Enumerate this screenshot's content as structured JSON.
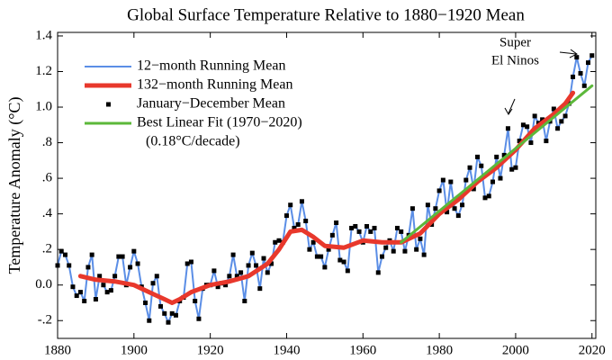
{
  "chart_data": {
    "type": "line",
    "title": "Global Surface Temperature Relative to 1880−1920 Mean",
    "ylabel": "Temperature Anomaly (°C)",
    "xlim": [
      1880,
      2021
    ],
    "ylim": [
      -0.3,
      1.42
    ],
    "xticks": [
      1880,
      1900,
      1920,
      1940,
      1960,
      1980,
      2000,
      2020
    ],
    "yticks": [
      {
        "value": -0.2,
        "label": "-.2"
      },
      {
        "value": 0,
        "label": "0.0"
      },
      {
        "value": 0.2,
        "label": ".2"
      },
      {
        "value": 0.4,
        "label": ".4"
      },
      {
        "value": 0.6,
        "label": ".6"
      },
      {
        "value": 0.8,
        "label": ".8"
      },
      {
        "value": 1.0,
        "label": "1.0"
      },
      1.2,
      1.4
    ],
    "legend": "upper left",
    "annotations": [
      "(0.18°C/decade)",
      "Super",
      "El Ninos"
    ],
    "x": [
      1880,
      1881,
      1882,
      1883,
      1884,
      1885,
      1886,
      1887,
      1888,
      1889,
      1890,
      1891,
      1892,
      1893,
      1894,
      1895,
      1896,
      1897,
      1898,
      1899,
      1900,
      1901,
      1902,
      1903,
      1904,
      1905,
      1906,
      1907,
      1908,
      1909,
      1910,
      1911,
      1912,
      1913,
      1914,
      1915,
      1916,
      1917,
      1918,
      1919,
      1920,
      1921,
      1922,
      1923,
      1924,
      1925,
      1926,
      1927,
      1928,
      1929,
      1930,
      1931,
      1932,
      1933,
      1934,
      1935,
      1936,
      1937,
      1938,
      1939,
      1940,
      1941,
      1942,
      1943,
      1944,
      1945,
      1946,
      1947,
      1948,
      1949,
      1950,
      1951,
      1952,
      1953,
      1954,
      1955,
      1956,
      1957,
      1958,
      1959,
      1960,
      1961,
      1962,
      1963,
      1964,
      1965,
      1966,
      1967,
      1968,
      1969,
      1970,
      1971,
      1972,
      1973,
      1974,
      1975,
      1976,
      1977,
      1978,
      1979,
      1980,
      1981,
      1982,
      1983,
      1984,
      1985,
      1986,
      1987,
      1988,
      1989,
      1990,
      1991,
      1992,
      1993,
      1994,
      1995,
      1996,
      1997,
      1998,
      1999,
      2000,
      2001,
      2002,
      2003,
      2004,
      2005,
      2006,
      2007,
      2008,
      2009,
      2010,
      2011,
      2012,
      2013,
      2014,
      2015,
      2016,
      2017,
      2018,
      2019,
      2020
    ],
    "series": [
      {
        "name": "12−month Running Mean",
        "color": "#5b8ee6",
        "style": "line",
        "width": 2,
        "values": [
          0.11,
          0.19,
          0.17,
          0.11,
          -0.01,
          -0.06,
          -0.04,
          -0.09,
          0.1,
          0.17,
          -0.08,
          0.05,
          0.0,
          -0.04,
          -0.03,
          0.05,
          0.16,
          0.16,
          0.0,
          0.1,
          0.19,
          0.12,
          -0.01,
          -0.1,
          -0.2,
          0.01,
          0.05,
          -0.12,
          -0.16,
          -0.21,
          -0.16,
          -0.17,
          -0.09,
          -0.07,
          0.12,
          0.13,
          -0.09,
          -0.19,
          -0.02,
          0.0,
          0.0,
          0.08,
          -0.01,
          0.01,
          0.0,
          0.05,
          0.17,
          0.05,
          0.07,
          -0.09,
          0.11,
          0.18,
          0.11,
          -0.02,
          0.15,
          0.07,
          0.12,
          0.24,
          0.25,
          0.24,
          0.39,
          0.45,
          0.32,
          0.34,
          0.47,
          0.36,
          0.2,
          0.24,
          0.16,
          0.16,
          0.1,
          0.2,
          0.28,
          0.35,
          0.14,
          0.13,
          0.08,
          0.32,
          0.33,
          0.3,
          0.24,
          0.33,
          0.3,
          0.32,
          0.07,
          0.16,
          0.21,
          0.25,
          0.19,
          0.32,
          0.3,
          0.19,
          0.28,
          0.43,
          0.2,
          0.26,
          0.17,
          0.45,
          0.34,
          0.43,
          0.53,
          0.59,
          0.41,
          0.58,
          0.43,
          0.39,
          0.45,
          0.59,
          0.66,
          0.54,
          0.72,
          0.67,
          0.49,
          0.5,
          0.58,
          0.72,
          0.6,
          0.73,
          0.88,
          0.65,
          0.66,
          0.81,
          0.9,
          0.89,
          0.8,
          0.95,
          0.91,
          0.93,
          0.81,
          0.92,
          0.99,
          0.88,
          0.92,
          0.95,
          1.02,
          1.17,
          1.28,
          1.19,
          1.12,
          1.25,
          1.29
        ]
      },
      {
        "name": "132−month Running Mean",
        "color": "#e8382c",
        "style": "line",
        "width": 5,
        "x": [
          1886,
          1890,
          1895,
          1900,
          1905,
          1908,
          1910,
          1912,
          1915,
          1920,
          1925,
          1930,
          1935,
          1938,
          1941,
          1944,
          1947,
          1950,
          1955,
          1960,
          1965,
          1970,
          1975,
          1980,
          1985,
          1990,
          1995,
          2000,
          2005,
          2010,
          2013,
          2015
        ],
        "values": [
          0.05,
          0.03,
          0.02,
          0.0,
          -0.05,
          -0.08,
          -0.1,
          -0.08,
          -0.04,
          0.0,
          0.02,
          0.05,
          0.12,
          0.2,
          0.3,
          0.31,
          0.27,
          0.22,
          0.21,
          0.25,
          0.24,
          0.24,
          0.29,
          0.4,
          0.48,
          0.58,
          0.66,
          0.76,
          0.88,
          0.96,
          1.02,
          1.08
        ]
      },
      {
        "name": "January−December Mean",
        "color": "#000000",
        "style": "marker",
        "values": [
          0.11,
          0.19,
          0.17,
          0.11,
          -0.01,
          -0.06,
          -0.04,
          -0.09,
          0.1,
          0.17,
          -0.08,
          0.05,
          0.0,
          -0.04,
          -0.03,
          0.05,
          0.16,
          0.16,
          0.0,
          0.1,
          0.19,
          0.12,
          -0.01,
          -0.1,
          -0.2,
          0.01,
          0.05,
          -0.12,
          -0.16,
          -0.21,
          -0.16,
          -0.17,
          -0.09,
          -0.07,
          0.12,
          0.13,
          -0.09,
          -0.19,
          -0.02,
          0.0,
          0.0,
          0.08,
          -0.01,
          0.01,
          0.0,
          0.05,
          0.17,
          0.05,
          0.07,
          -0.09,
          0.11,
          0.18,
          0.11,
          -0.02,
          0.15,
          0.07,
          0.12,
          0.24,
          0.25,
          0.24,
          0.39,
          0.45,
          0.32,
          0.34,
          0.47,
          0.36,
          0.2,
          0.24,
          0.16,
          0.16,
          0.1,
          0.2,
          0.28,
          0.35,
          0.14,
          0.13,
          0.08,
          0.32,
          0.33,
          0.3,
          0.24,
          0.33,
          0.3,
          0.32,
          0.07,
          0.16,
          0.21,
          0.25,
          0.19,
          0.32,
          0.3,
          0.19,
          0.28,
          0.43,
          0.2,
          0.26,
          0.17,
          0.45,
          0.34,
          0.43,
          0.53,
          0.59,
          0.41,
          0.58,
          0.43,
          0.39,
          0.45,
          0.59,
          0.66,
          0.54,
          0.72,
          0.67,
          0.49,
          0.5,
          0.58,
          0.72,
          0.6,
          0.73,
          0.88,
          0.65,
          0.66,
          0.81,
          0.9,
          0.89,
          0.8,
          0.95,
          0.91,
          0.93,
          0.81,
          0.92,
          0.99,
          0.88,
          0.92,
          0.95,
          1.02,
          1.17,
          1.28,
          1.19,
          1.12,
          1.25,
          1.29
        ]
      },
      {
        "name": "Best Linear Fit (1970−2020)",
        "color": "#5cb83a",
        "style": "line",
        "width": 3,
        "x": [
          1970,
          2020
        ],
        "values": [
          0.24,
          1.12
        ]
      }
    ]
  }
}
